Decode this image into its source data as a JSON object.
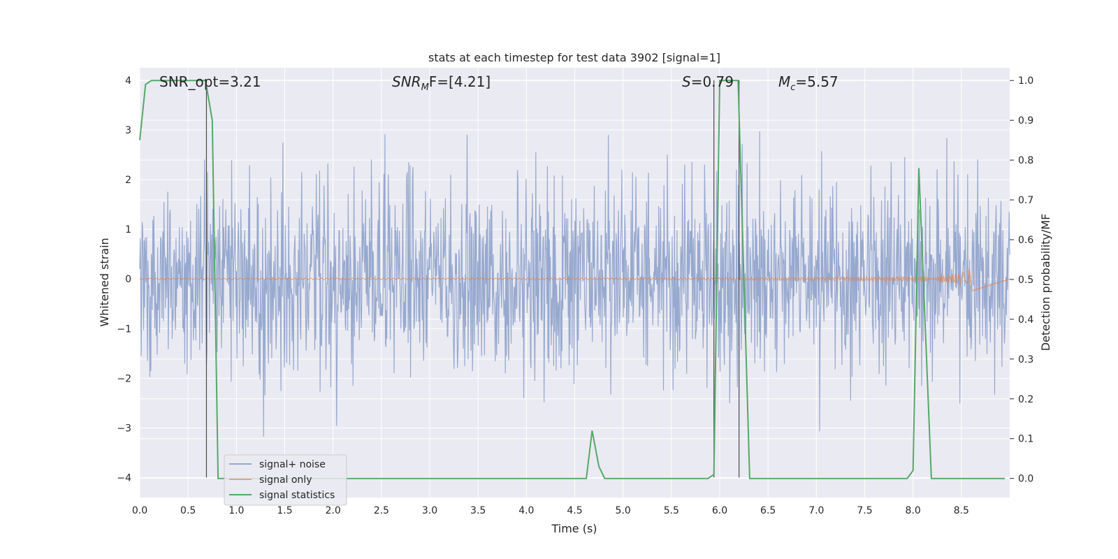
{
  "chart_data": {
    "type": "line",
    "title": "stats at each timestep for test data 3902 [signal=1]",
    "xlabel": "Time (s)",
    "ylabel_left": "Whitened strain",
    "ylabel_right": "Detection probability/MF",
    "xlim": [
      0.0,
      9.0
    ],
    "ylim_left": [
      -4.4,
      4.25
    ],
    "ylim_right": [
      -0.048,
      1.032
    ],
    "x_ticks": [
      0.0,
      0.5,
      1.0,
      1.5,
      2.0,
      2.5,
      3.0,
      3.5,
      4.0,
      4.5,
      5.0,
      5.5,
      6.0,
      6.5,
      7.0,
      7.5,
      8.0,
      8.5
    ],
    "x_tick_labels": [
      "0.0",
      "0.5",
      "1.0",
      "1.5",
      "2.0",
      "2.5",
      "3.0",
      "3.5",
      "4.0",
      "4.5",
      "5.0",
      "5.5",
      "6.0",
      "6.5",
      "7.0",
      "7.5",
      "8.0",
      "8.5"
    ],
    "y_left_ticks": [
      -4,
      -3,
      -2,
      -1,
      0,
      1,
      2,
      3,
      4
    ],
    "y_left_tick_labels": [
      "−4",
      "−3",
      "−2",
      "−1",
      "0",
      "1",
      "2",
      "3",
      "4"
    ],
    "y_right_ticks": [
      0.0,
      0.1,
      0.2,
      0.3,
      0.4,
      0.5,
      0.6,
      0.7,
      0.8,
      0.9,
      1.0
    ],
    "y_right_tick_labels": [
      "0.0",
      "0.1",
      "0.2",
      "0.3",
      "0.4",
      "0.5",
      "0.6",
      "0.7",
      "0.8",
      "0.9",
      "1.0"
    ],
    "grid": true,
    "legend_position": "lower-left",
    "annotations": {
      "snr_opt": "SNR_opt=3.21",
      "snr_mf_main": "SNR",
      "snr_mf_sub": "M",
      "snr_mf_rest": "F=[4.21]",
      "s_value_main": "S",
      "s_value_rest": "=0.79",
      "mc_main": "M",
      "mc_sub": "c",
      "mc_rest": "=5.57"
    },
    "vertical_markers_x": [
      0.69,
      5.94,
      6.2
    ],
    "series": [
      {
        "name": "signal+ noise",
        "color": "#97a9cf",
        "axis": "left",
        "kind": "noise",
        "duration": 9.0,
        "typical_amplitude_range": [
          -2.5,
          2.5
        ],
        "peak_range": [
          -3.8,
          3.95
        ]
      },
      {
        "name": "signal only",
        "color": "#dd8452",
        "axis": "left",
        "kind": "chirp",
        "start": 0.0,
        "merger_time": 8.62,
        "peak_amplitude": 0.42
      },
      {
        "name": "signal statistics",
        "color": "#55a868",
        "axis": "right",
        "x": [
          0.0,
          0.06,
          0.12,
          0.55,
          0.68,
          0.75,
          0.81,
          4.62,
          4.68,
          4.75,
          4.81,
          5.88,
          5.94,
          6.0,
          6.05,
          6.19,
          6.31,
          7.94,
          8.0,
          8.06,
          8.19,
          8.95
        ],
        "y": [
          0.85,
          0.99,
          1.0,
          1.0,
          1.0,
          0.9,
          0.0,
          0.0,
          0.12,
          0.03,
          0.0,
          0.0,
          0.01,
          1.0,
          1.0,
          1.0,
          0.0,
          0.0,
          0.02,
          0.78,
          0.0,
          0.0
        ]
      }
    ]
  }
}
